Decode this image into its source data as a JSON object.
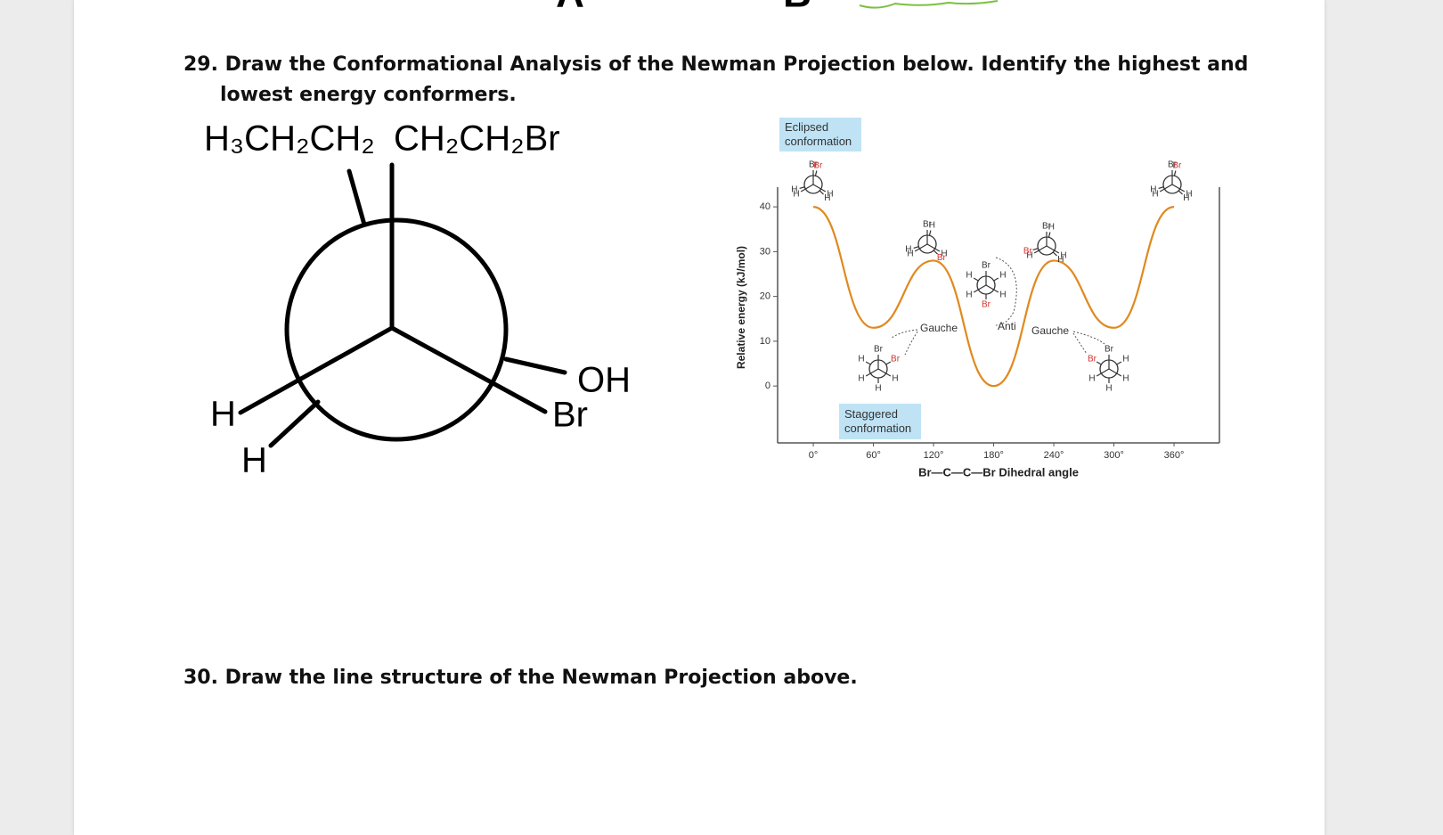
{
  "header_fragments": [
    "A",
    "B"
  ],
  "question_29": "29. Draw the Conformational Analysis of the Newman Projection below. Identify the highest and lowest energy conformers.",
  "newman": {
    "back_top_left": "H₃CH₂CH₂",
    "front_top": "CH₂CH₂Br",
    "front_left": "H",
    "back_left": "H",
    "back_right": "OH",
    "front_right": "Br"
  },
  "chart_data": {
    "type": "line",
    "y_label": "Relative energy (kJ/mol)",
    "x_label": "Br—C—C—Br Dihedral angle",
    "x": [
      0,
      60,
      120,
      180,
      240,
      300,
      360
    ],
    "values": [
      40,
      13,
      28,
      0,
      28,
      13,
      40
    ],
    "color": "#e0891f",
    "xlim": [
      -35.6,
      405.3
    ],
    "ylim": [
      -12.7,
      44.4
    ],
    "xticks": [
      {
        "value": 0,
        "label": "0°"
      },
      {
        "value": 60,
        "label": "60°"
      },
      {
        "value": 120,
        "label": "120°"
      },
      {
        "value": 180,
        "label": "180°"
      },
      {
        "value": 240,
        "label": "240°"
      },
      {
        "value": 300,
        "label": "300°"
      },
      {
        "value": 360,
        "label": "360°"
      }
    ],
    "yticks": [
      0,
      10,
      20,
      30,
      40
    ],
    "annotations": {
      "eclipsed": "Eclipsed conformation",
      "staggered": "Staggered conformation",
      "gauche_left": "Gauche",
      "anti": "Anti",
      "gauche_right": "Gauche"
    },
    "conformers": [
      {
        "dihedral": 0,
        "front": [
          "Br",
          "H",
          "H"
        ],
        "back": [
          "Br",
          "H",
          "H"
        ]
      },
      {
        "dihedral": 60,
        "front": [
          "Br",
          "H",
          "H"
        ],
        "back": [
          "Br",
          "H",
          "H"
        ]
      },
      {
        "dihedral": 120,
        "front": [
          "Br",
          "H",
          "H"
        ],
        "back": [
          "Br",
          "H",
          "H"
        ]
      },
      {
        "dihedral": 180,
        "front": [
          "Br",
          "H",
          "H"
        ],
        "back": [
          "Br",
          "H",
          "H"
        ]
      },
      {
        "dihedral": 240,
        "front": [
          "Br",
          "H",
          "H"
        ],
        "back": [
          "Br",
          "H",
          "H"
        ]
      },
      {
        "dihedral": 300,
        "front": [
          "Br",
          "H",
          "H"
        ],
        "back": [
          "Br",
          "H",
          "H"
        ]
      },
      {
        "dihedral": 360,
        "front": [
          "Br",
          "H",
          "H"
        ],
        "back": [
          "Br",
          "H",
          "H"
        ]
      }
    ]
  },
  "question_30": "30. Draw the line structure of the Newman Projection above."
}
